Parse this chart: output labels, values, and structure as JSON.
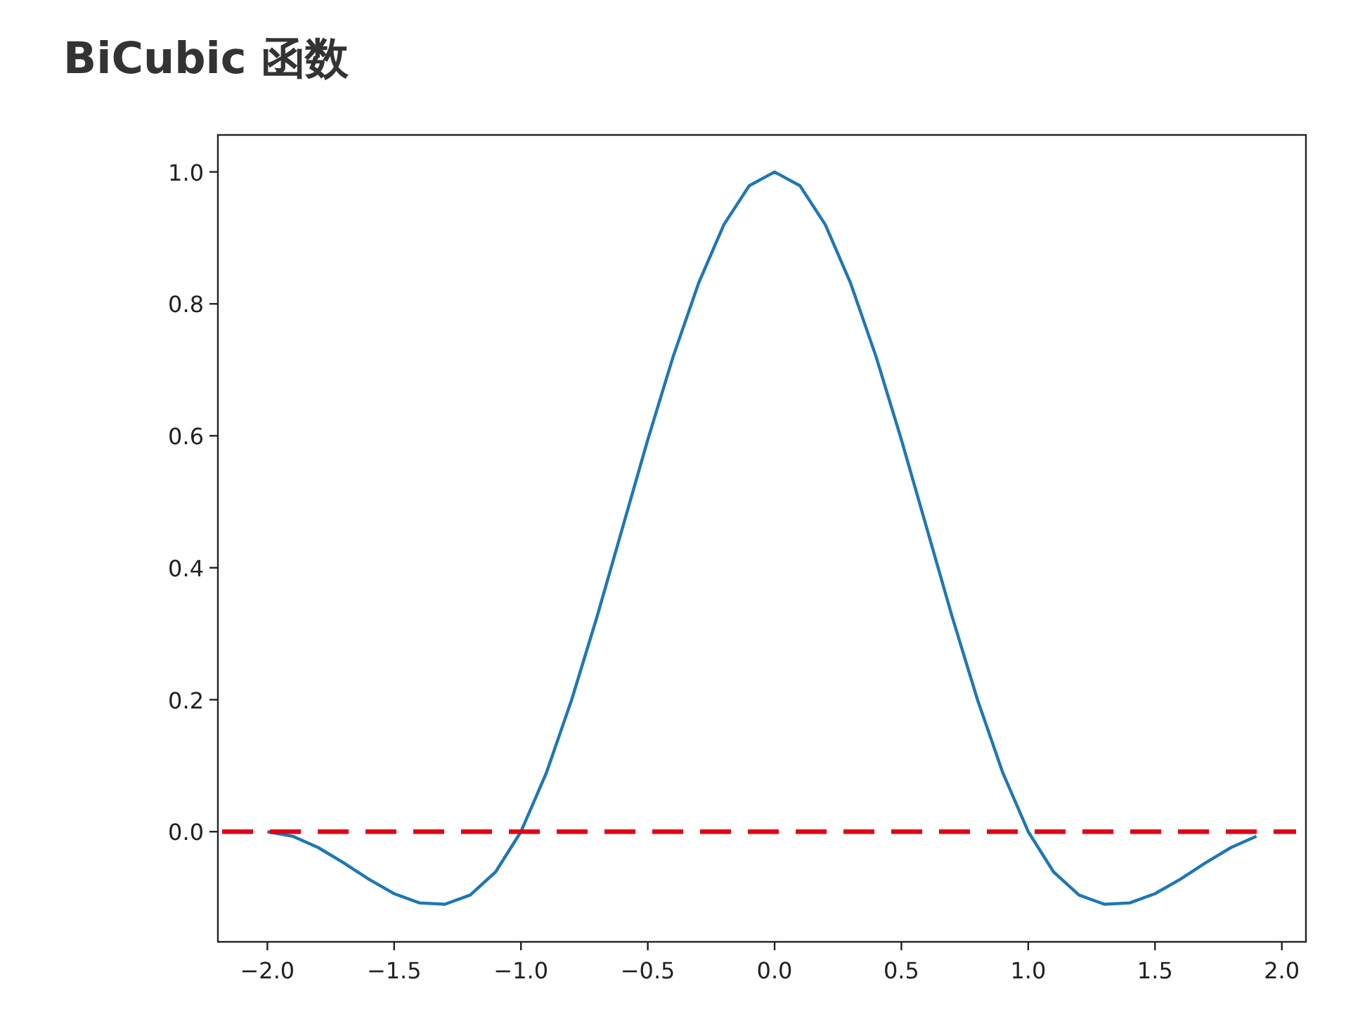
{
  "chart_data": {
    "type": "line",
    "title": "BiCubic 函数",
    "x": [
      -2.0,
      -1.9,
      -1.8,
      -1.7,
      -1.6,
      -1.5,
      -1.4,
      -1.3,
      -1.2,
      -1.1,
      -1.0,
      -0.9,
      -0.8,
      -0.7,
      -0.6,
      -0.5,
      -0.4,
      -0.3,
      -0.2,
      -0.1,
      0.0,
      0.1,
      0.2,
      0.3,
      0.4,
      0.5,
      0.6,
      0.7,
      0.8,
      0.9,
      1.0,
      1.1,
      1.2,
      1.3,
      1.4,
      1.5,
      1.6,
      1.7,
      1.8,
      1.9
    ],
    "series": [
      {
        "color": "#1f77b4",
        "values": [
          0.0,
          -0.007,
          -0.024,
          -0.047,
          -0.072,
          -0.094,
          -0.108,
          -0.11,
          -0.096,
          -0.061,
          0.0,
          0.089,
          0.2,
          0.326,
          0.46,
          0.594,
          0.72,
          0.831,
          0.92,
          0.979,
          1.0,
          0.979,
          0.92,
          0.831,
          0.72,
          0.594,
          0.46,
          0.326,
          0.2,
          0.089,
          0.0,
          -0.061,
          -0.096,
          -0.11,
          -0.108,
          -0.094,
          -0.072,
          -0.047,
          -0.024,
          -0.007
        ]
      }
    ],
    "xlim": [
      -2.195,
      2.095
    ],
    "ylim": [
      -0.167,
      1.056
    ],
    "xticks": [
      {
        "value": -2.0,
        "label": "−2.0"
      },
      {
        "value": -1.5,
        "label": "−1.5"
      },
      {
        "value": -1.0,
        "label": "−1.0"
      },
      {
        "value": -0.5,
        "label": "−0.5"
      },
      {
        "value": 0.0,
        "label": "0.0"
      },
      {
        "value": 0.5,
        "label": "0.5"
      },
      {
        "value": 1.0,
        "label": "1.0"
      },
      {
        "value": 1.5,
        "label": "1.5"
      },
      {
        "value": 2.0,
        "label": "2.0"
      }
    ],
    "yticks": [
      {
        "value": 0.0,
        "label": "0.0"
      },
      {
        "value": 0.2,
        "label": "0.2"
      },
      {
        "value": 0.4,
        "label": "0.4"
      },
      {
        "value": 0.6,
        "label": "0.6"
      },
      {
        "value": 0.8,
        "label": "0.8"
      },
      {
        "value": 1.0,
        "label": "1.0"
      }
    ],
    "ref_lines": [
      {
        "axis": "y",
        "value": 0,
        "color": "#e0001b",
        "line_style": "dashed"
      }
    ]
  }
}
